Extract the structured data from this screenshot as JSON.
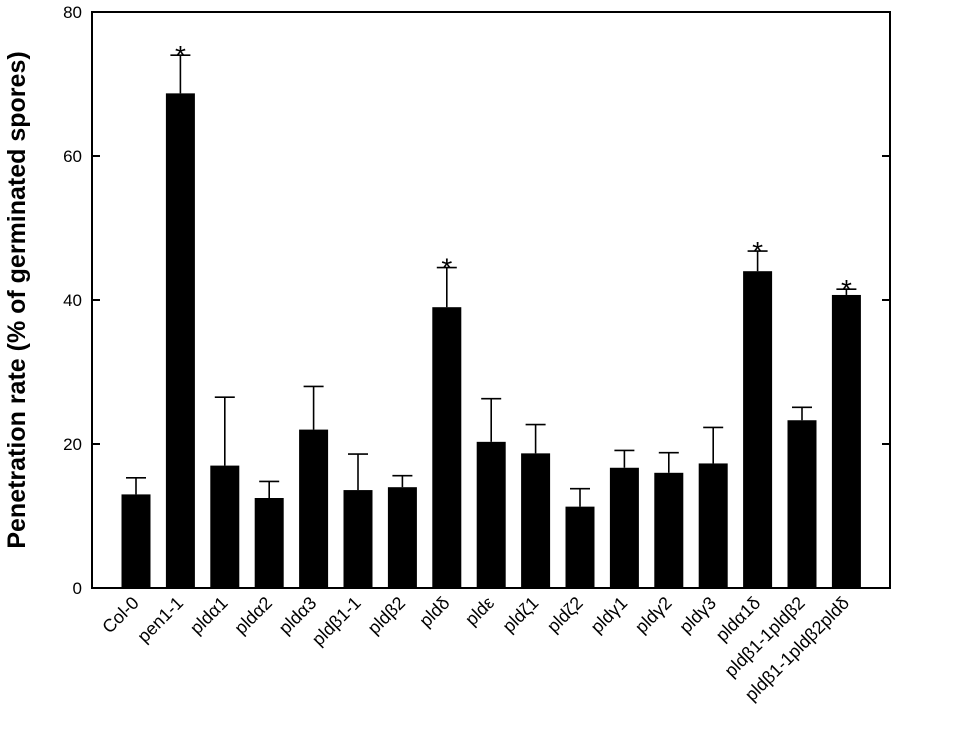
{
  "chart_data": {
    "type": "bar",
    "title": "",
    "xlabel": "",
    "ylabel": "Penetration rate (% of germinated spores)",
    "ylim": [
      0,
      80
    ],
    "yticks": [
      0,
      20,
      40,
      60,
      80
    ],
    "grid": false,
    "categories": [
      "Col-0",
      "pen1-1",
      "pldα1",
      "pldα2",
      "pldα3",
      "pldβ1-1",
      "pldβ2",
      "pldδ",
      "pldε",
      "pldζ1",
      "pldζ2",
      "pldγ1",
      "pldγ2",
      "pldγ3",
      "pldα1δ",
      "pldβ1-1pldβ2",
      "pldβ1-1pldβ2pldδ"
    ],
    "values": [
      13.0,
      68.7,
      17.0,
      12.5,
      22.0,
      13.6,
      14.0,
      39.0,
      20.3,
      18.7,
      11.3,
      16.7,
      16.0,
      17.3,
      44.0,
      23.3,
      40.7
    ],
    "errors": [
      2.3,
      5.3,
      9.5,
      2.3,
      6.0,
      5.0,
      1.6,
      5.5,
      6.0,
      4.0,
      2.5,
      2.4,
      2.8,
      5.0,
      2.8,
      1.8,
      0.8
    ],
    "significance": [
      "",
      "*",
      "",
      "",
      "",
      "",
      "",
      "*",
      "",
      "",
      "",
      "",
      "",
      "",
      "*",
      "",
      "*"
    ],
    "bar_color": "#000000"
  }
}
